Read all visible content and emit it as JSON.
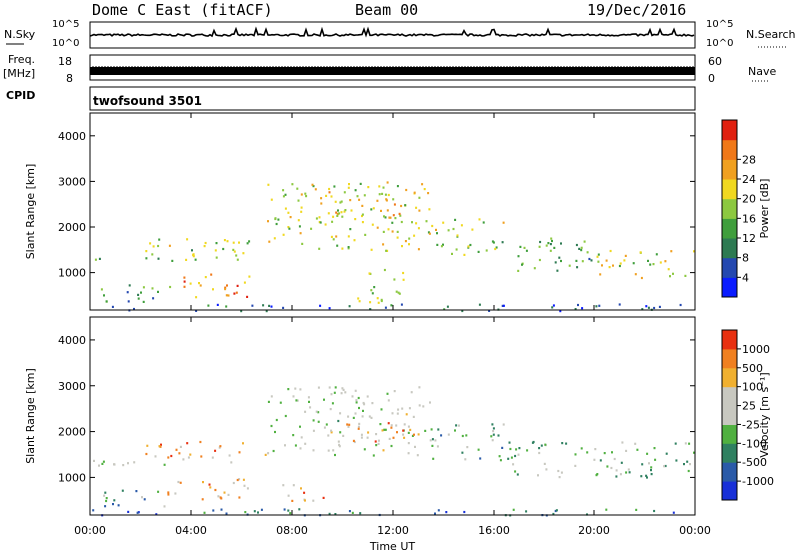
{
  "header": {
    "station": "Dome C East (fitACF)",
    "beam": "Beam 00",
    "date": "19/Dec/2016"
  },
  "strip_labels": {
    "nsky": "N.Sky",
    "freq_1": "Freq.",
    "freq_2": "[MHz]",
    "cpid": "CPID",
    "nsearch": "N.Search",
    "nave": "Nave",
    "nsky_top": "10^5",
    "nsky_bottom": "10^0",
    "nsearch_top": "10^5",
    "nsearch_bottom": "10^0",
    "freq_top": "18",
    "freq_bottom": "8",
    "nave_top": "60",
    "nave_bottom": "0",
    "cpid_value": "twofsound 3501"
  },
  "chart_data": [
    {
      "type": "heatmap",
      "panel": "power",
      "ylabel": "Slant Range [km]",
      "xlabel": "",
      "x_ticks": [
        "00:00",
        "04:00",
        "08:00",
        "12:00",
        "16:00",
        "20:00",
        "00:00"
      ],
      "y_ticks": [
        1000,
        2000,
        3000,
        4000
      ],
      "ylim": [
        180,
        4500
      ],
      "colorbar": {
        "label": "Power [dB]",
        "ticks": [
          "4",
          "8",
          "12",
          "16",
          "20",
          "24",
          "28"
        ],
        "colors": [
          "#0a1cff",
          "#2448b0",
          "#2d7a52",
          "#3f9e3c",
          "#8cc840",
          "#f0d820",
          "#f0a020",
          "#f07818",
          "#e02010"
        ]
      },
      "scatter_regions": [
        {
          "t0": 0.0,
          "t1": 6.0,
          "r0": 1280,
          "r1": 1460,
          "level": 0.45
        },
        {
          "t0": 0.3,
          "t1": 3.5,
          "r0": 380,
          "r1": 780,
          "level": 0.35
        },
        {
          "t0": 3.6,
          "t1": 6.4,
          "r0": 480,
          "r1": 1000,
          "level": 0.75
        },
        {
          "t0": 5.5,
          "t1": 6.3,
          "r0": 550,
          "r1": 850,
          "level": 0.95
        },
        {
          "t0": 2.0,
          "t1": 7.0,
          "r0": 1450,
          "r1": 1800,
          "level": 0.5
        },
        {
          "t0": 7.0,
          "t1": 13.5,
          "r0": 1500,
          "r1": 3000,
          "level": 0.55
        },
        {
          "t0": 9.0,
          "t1": 13.0,
          "r0": 2200,
          "r1": 2800,
          "level": 0.65
        },
        {
          "t0": 13.5,
          "t1": 16.5,
          "r0": 1400,
          "r1": 2200,
          "level": 0.5
        },
        {
          "t0": 16.5,
          "t1": 20.0,
          "r0": 1000,
          "r1": 1800,
          "level": 0.35
        },
        {
          "t0": 20.0,
          "t1": 24.0,
          "r0": 900,
          "r1": 1500,
          "level": 0.55
        },
        {
          "t0": 0.0,
          "t1": 24.0,
          "r0": 180,
          "r1": 330,
          "level": 0.2
        },
        {
          "t0": 10.5,
          "t1": 12.5,
          "r0": 300,
          "r1": 1100,
          "level": 0.5
        }
      ]
    },
    {
      "type": "heatmap",
      "panel": "velocity",
      "ylabel": "Slant Range [km]",
      "xlabel": "Time UT",
      "x_ticks": [
        "00:00",
        "04:00",
        "08:00",
        "12:00",
        "16:00",
        "20:00",
        "00:00"
      ],
      "y_ticks": [
        1000,
        2000,
        3000,
        4000
      ],
      "ylim": [
        180,
        4500
      ],
      "colorbar": {
        "label": "Velocity [m s⁻¹]",
        "ticks": [
          "1000",
          "500",
          "100",
          "25",
          "-25",
          "-100",
          "-500",
          "-1000"
        ],
        "colors": [
          "#1830d8",
          "#2a5aa8",
          "#2f8060",
          "#50b040",
          "#c8c8c0",
          "#c8c8c0",
          "#f0b030",
          "#f08020",
          "#e83010"
        ]
      },
      "scatter_regions": [
        {
          "t0": 0.0,
          "t1": 6.0,
          "r0": 1280,
          "r1": 1460,
          "level": 0.5
        },
        {
          "t0": 0.3,
          "t1": 3.0,
          "r0": 380,
          "r1": 780,
          "level": 0.3
        },
        {
          "t0": 3.0,
          "t1": 6.4,
          "r0": 480,
          "r1": 1000,
          "level": 0.75
        },
        {
          "t0": 2.0,
          "t1": 7.0,
          "r0": 1450,
          "r1": 1800,
          "level": 0.78
        },
        {
          "t0": 7.0,
          "t1": 13.5,
          "r0": 1500,
          "r1": 3000,
          "level": 0.5
        },
        {
          "t0": 10.0,
          "t1": 13.0,
          "r0": 1800,
          "r1": 2300,
          "level": 0.8
        },
        {
          "t0": 13.5,
          "t1": 16.5,
          "r0": 1400,
          "r1": 2200,
          "level": 0.35
        },
        {
          "t0": 16.5,
          "t1": 24.0,
          "r0": 1000,
          "r1": 1800,
          "level": 0.4
        },
        {
          "t0": 0.0,
          "t1": 24.0,
          "r0": 180,
          "r1": 330,
          "level": 0.22
        },
        {
          "t0": 7.5,
          "t1": 9.5,
          "r0": 500,
          "r1": 900,
          "level": 0.8
        }
      ]
    }
  ]
}
